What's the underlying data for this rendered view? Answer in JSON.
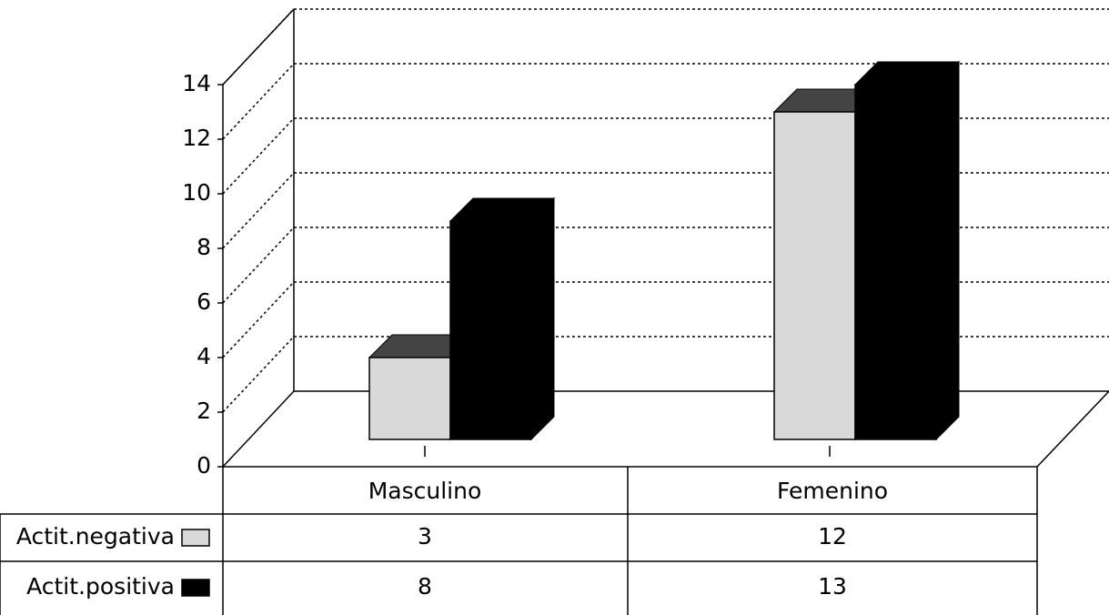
{
  "chart_data": {
    "type": "bar3d",
    "categories": [
      "Masculino",
      "Femenino"
    ],
    "series": [
      {
        "name": "Actit.negativa",
        "color": "#d9d9d9",
        "values": [
          3,
          12
        ]
      },
      {
        "name": "Actit.positiva",
        "color": "#000000",
        "values": [
          8,
          13
        ]
      }
    ],
    "ylim": [
      0,
      14
    ],
    "yticks": [
      0,
      2,
      4,
      6,
      8,
      10,
      12,
      14
    ],
    "grid": true
  }
}
